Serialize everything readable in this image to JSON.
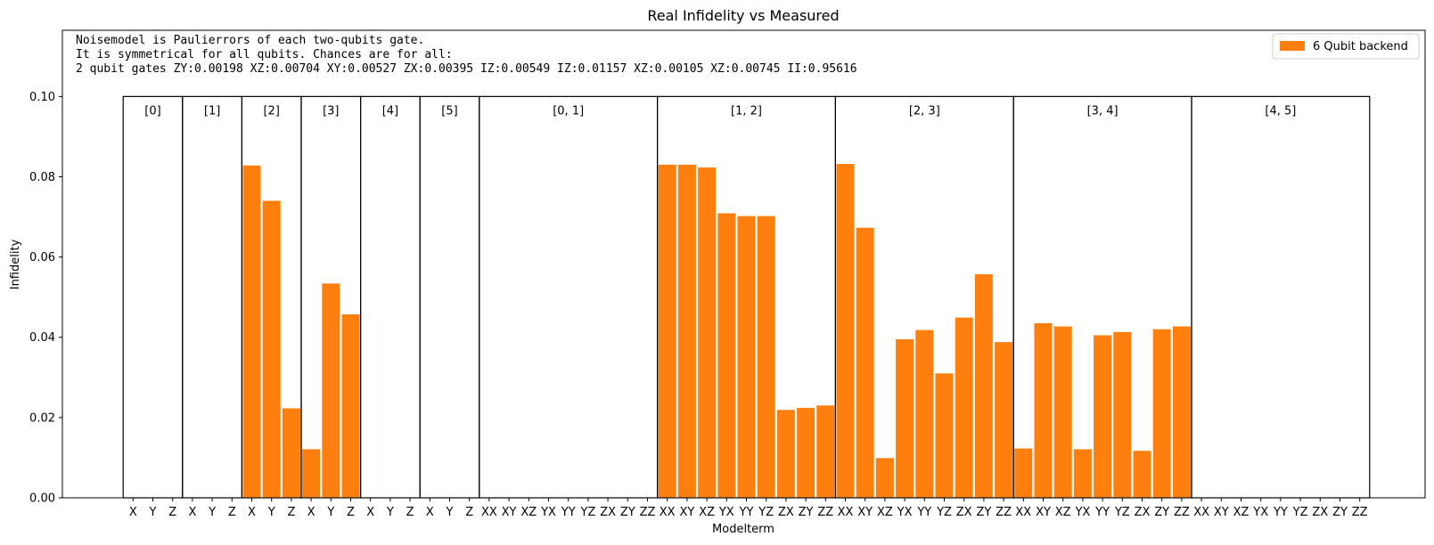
{
  "chart_data": {
    "type": "bar",
    "title": "Real Infidelity vs Measured",
    "xlabel": "Modelterm",
    "ylabel": "Infidelity",
    "ylim": [
      0,
      0.1165
    ],
    "yticks": [
      "0.00",
      "0.02",
      "0.04",
      "0.06",
      "0.08",
      "0.10"
    ],
    "ytick_values": [
      0,
      0.02,
      0.04,
      0.06,
      0.08,
      0.1
    ],
    "group_box_top": 0.1,
    "legend": {
      "position": "top-right",
      "label": "6 Qubit backend"
    },
    "annotation": [
      "Noisemodel is Paulierrors of each two-qubits gate.",
      "It is symmetrical for all qubits. Chances are for all:",
      "2 qubit gates ZY:0.00198   XZ:0.00704   XY:0.00527   ZX:0.00395   IZ:0.00549   IZ:0.01157   XZ:0.00105   XZ:0.00745   II:0.95616"
    ],
    "groups": [
      {
        "label": "[0]",
        "terms": [
          "X",
          "Y",
          "Z"
        ],
        "values": [
          0,
          0,
          0
        ]
      },
      {
        "label": "[1]",
        "terms": [
          "X",
          "Y",
          "Z"
        ],
        "values": [
          0,
          0,
          0
        ]
      },
      {
        "label": "[2]",
        "terms": [
          "X",
          "Y",
          "Z"
        ],
        "values": [
          0.0828,
          0.074,
          0.0223
        ]
      },
      {
        "label": "[3]",
        "terms": [
          "X",
          "Y",
          "Z"
        ],
        "values": [
          0.0121,
          0.0534,
          0.0457
        ]
      },
      {
        "label": "[4]",
        "terms": [
          "X",
          "Y",
          "Z"
        ],
        "values": [
          0,
          0,
          0
        ]
      },
      {
        "label": "[5]",
        "terms": [
          "X",
          "Y",
          "Z"
        ],
        "values": [
          0,
          0,
          0
        ]
      },
      {
        "label": "[0, 1]",
        "terms": [
          "XX",
          "XY",
          "XZ",
          "YX",
          "YY",
          "YZ",
          "ZX",
          "ZY",
          "ZZ"
        ],
        "values": [
          0,
          0,
          0,
          0,
          0,
          0,
          0,
          0,
          0
        ]
      },
      {
        "label": "[1, 2]",
        "terms": [
          "XX",
          "XY",
          "XZ",
          "YX",
          "YY",
          "YZ",
          "ZX",
          "ZY",
          "ZZ"
        ],
        "values": [
          0.083,
          0.083,
          0.0823,
          0.0709,
          0.0702,
          0.0702,
          0.0219,
          0.0224,
          0.023
        ]
      },
      {
        "label": "[2, 3]",
        "terms": [
          "XX",
          "XY",
          "XZ",
          "YX",
          "YY",
          "YZ",
          "ZX",
          "ZY",
          "ZZ"
        ],
        "values": [
          0.0832,
          0.0673,
          0.0099,
          0.0395,
          0.0418,
          0.031,
          0.0449,
          0.0557,
          0.0388
        ]
      },
      {
        "label": "[3, 4]",
        "terms": [
          "XX",
          "XY",
          "XZ",
          "YX",
          "YY",
          "YZ",
          "ZX",
          "ZY",
          "ZZ"
        ],
        "values": [
          0.0123,
          0.0435,
          0.0427,
          0.0121,
          0.0405,
          0.0413,
          0.0117,
          0.042,
          0.0427
        ]
      },
      {
        "label": "[4, 5]",
        "terms": [
          "XX",
          "XY",
          "XZ",
          "YX",
          "YY",
          "YZ",
          "ZX",
          "ZY",
          "ZZ"
        ],
        "values": [
          0,
          0,
          0,
          0,
          0,
          0,
          0,
          0,
          0
        ]
      }
    ],
    "colors": {
      "bar": "#ff7f0e",
      "box": "#000000"
    }
  }
}
